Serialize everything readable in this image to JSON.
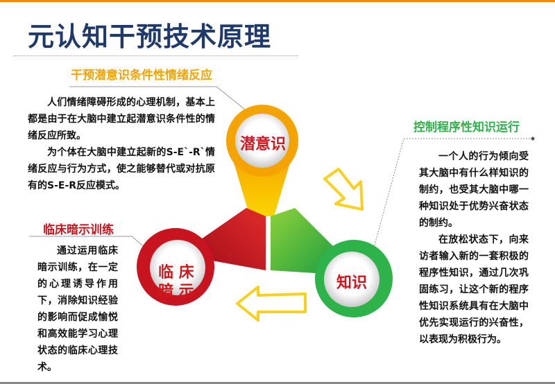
{
  "title": "元认知干预技术原理",
  "sections": {
    "subconscious": {
      "heading": "干预潜意识条件性情绪反应",
      "paragraphs": [
        "人们情绪障碍形成的心理机制，基本上都是由于在大脑中建立起潜意识条件性的情绪反应所致。",
        "为个体在大脑中建立起新的S-E`-R`情绪反应与行为方式，使之能够替代或对抗原有的S-E-R反应模式。"
      ],
      "circle_label": "潜意识",
      "color": "#f5a300"
    },
    "knowledge": {
      "heading": "控制程序性知识运行",
      "paragraphs": [
        "一个人的行为倾向受其大脑中有什么样知识的制约，也受其大脑中哪一种知识处于优势兴奋状态的制约。",
        "在放松状态下，向来访者输入新的一套积极的程序性知识，通过几次巩固练习，让这个新的程序性知识系统具有在大脑中优先实现运行的兴奋性，以表现为积极行为。"
      ],
      "circle_label": "知识",
      "color": "#2db34a"
    },
    "clinical": {
      "heading": "临床暗示训练",
      "paragraphs": [
        "通过运用临床暗示训练，在一定的心理诱导作用下，消除知识经验的影响而促成愉悦和高效能学习心理状态的临床心理技术。"
      ],
      "circle_label_line1": "临 床",
      "circle_label_line2": "暗 示",
      "color": "#c8141e"
    }
  },
  "title_color": "#1f3a6a",
  "arrow_color": "#f7d020"
}
